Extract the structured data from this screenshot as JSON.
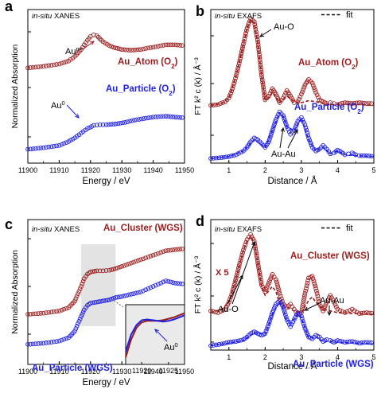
{
  "colors": {
    "red": "#9b1c1c",
    "blue": "#1f1fe0",
    "axis": "#000000",
    "shade": "#d9d9d9"
  },
  "chart_data": [
    {
      "panel_letter": "a",
      "type": "line",
      "title": "in-situ XANES",
      "xlabel": "Energy / eV",
      "ylabel": "Normalized Absorption",
      "xlim": [
        11900,
        11950
      ],
      "xticks": [
        11900,
        11910,
        11920,
        11930,
        11940,
        11950
      ],
      "annotations": [
        "Au",
        "n+",
        "Au",
        "0"
      ],
      "series": [
        {
          "name": "Au_Atom (O2)",
          "label_main": "Au_Atom (O",
          "label_sub": "2",
          "label_close": ")",
          "color": "red",
          "style": "circles",
          "x": [
            11900,
            11905,
            11910,
            11913,
            11915,
            11917,
            11918,
            11919,
            11920,
            11921,
            11922,
            11923,
            11924,
            11926,
            11928,
            11930,
            11933,
            11936,
            11940,
            11944,
            11947,
            11950
          ],
          "y": [
            0.62,
            0.63,
            0.645,
            0.665,
            0.695,
            0.74,
            0.77,
            0.8,
            0.825,
            0.835,
            0.83,
            0.81,
            0.79,
            0.765,
            0.75,
            0.74,
            0.735,
            0.74,
            0.755,
            0.77,
            0.77,
            0.765
          ]
        },
        {
          "name": "Au_Particle (O2)",
          "label_main": "Au_Particle (O",
          "label_sub": "2",
          "label_close": ")",
          "color": "blue",
          "style": "circles",
          "x": [
            11900,
            11905,
            11910,
            11913,
            11915,
            11917,
            11919,
            11921,
            11923,
            11925,
            11928,
            11931,
            11934,
            11937,
            11940,
            11944,
            11947,
            11950
          ],
          "y": [
            0.09,
            0.1,
            0.115,
            0.14,
            0.165,
            0.195,
            0.225,
            0.245,
            0.25,
            0.25,
            0.255,
            0.265,
            0.28,
            0.29,
            0.3,
            0.305,
            0.3,
            0.295
          ]
        }
      ]
    },
    {
      "panel_letter": "b",
      "type": "line",
      "title": "in-situ EXAFS",
      "legend": "fit",
      "xlabel": "Distance / Å",
      "ylabel": "FT k² c (k) / Å⁻³",
      "xlim": [
        0.5,
        5
      ],
      "xticks": [
        1,
        2,
        3,
        4,
        5
      ],
      "annotations": [
        "Au-O",
        "Au-Au"
      ],
      "series": [
        {
          "name": "Au_Atom (O2)",
          "label_main": "Au_Atom (O",
          "label_sub": "2",
          "label_close": ")",
          "color": "red",
          "style": "circles",
          "x": [
            0.5,
            0.7,
            0.9,
            1.0,
            1.1,
            1.2,
            1.3,
            1.4,
            1.5,
            1.6,
            1.7,
            1.8,
            1.9,
            2.0,
            2.1,
            2.2,
            2.3,
            2.4,
            2.5,
            2.6,
            2.7,
            2.8,
            2.9,
            3.0,
            3.1,
            3.2,
            3.3,
            3.4,
            3.5,
            3.6,
            3.7,
            3.8,
            3.9,
            4.0,
            4.2,
            4.4,
            4.6,
            4.8,
            5.0
          ],
          "y": [
            0.02,
            0.03,
            0.06,
            0.1,
            0.2,
            0.34,
            0.5,
            0.68,
            0.85,
            0.95,
            0.92,
            0.7,
            0.35,
            0.08,
            0.12,
            0.2,
            0.14,
            0.05,
            0.1,
            0.18,
            0.12,
            0.05,
            0.06,
            0.14,
            0.24,
            0.3,
            0.26,
            0.16,
            0.08,
            0.06,
            0.04,
            0.05,
            0.04,
            0.03,
            0.05,
            0.04,
            0.05,
            0.04,
            0.04
          ]
        },
        {
          "name": "fit (Au_Atom)",
          "color": "red",
          "style": "dashed",
          "x": [
            0.5,
            0.8,
            1.0,
            1.2,
            1.4,
            1.5,
            1.6,
            1.7,
            1.8,
            1.9,
            2.0,
            2.1,
            2.2,
            2.3,
            2.4,
            2.6,
            2.8,
            3.0,
            3.2,
            3.4,
            3.6,
            3.8,
            4.0,
            4.5,
            5.0
          ],
          "y": [
            0.02,
            0.04,
            0.1,
            0.34,
            0.68,
            0.85,
            0.94,
            0.9,
            0.68,
            0.34,
            0.08,
            0.1,
            0.16,
            0.1,
            0.05,
            0.12,
            0.06,
            0.05,
            0.07,
            0.06,
            0.04,
            0.03,
            0.03,
            0.03,
            0.02
          ]
        },
        {
          "name": "Au_Particle (O2)",
          "label_main": "Au_Particle (O",
          "label_sub": "2",
          "label_close": ")",
          "color": "blue",
          "style": "circles",
          "x": [
            0.5,
            0.8,
            1.0,
            1.2,
            1.4,
            1.5,
            1.6,
            1.7,
            1.8,
            1.9,
            2.0,
            2.1,
            2.2,
            2.3,
            2.4,
            2.5,
            2.6,
            2.7,
            2.8,
            2.9,
            3.0,
            3.1,
            3.2,
            3.3,
            3.4,
            3.5,
            3.6,
            3.7,
            3.8,
            3.9,
            4.0,
            4.1,
            4.2,
            4.3,
            4.4,
            4.5,
            4.6,
            4.8,
            5.0
          ],
          "y": [
            0.0,
            0.01,
            0.02,
            0.04,
            0.08,
            0.12,
            0.18,
            0.22,
            0.2,
            0.16,
            0.12,
            0.18,
            0.3,
            0.42,
            0.5,
            0.46,
            0.34,
            0.26,
            0.3,
            0.4,
            0.44,
            0.36,
            0.22,
            0.12,
            0.08,
            0.1,
            0.14,
            0.1,
            0.05,
            0.06,
            0.09,
            0.07,
            0.04,
            0.05,
            0.06,
            0.04,
            0.03,
            0.03,
            0.02
          ]
        },
        {
          "name": "fit (Au_Particle)",
          "color": "blue",
          "style": "dashed",
          "x": [
            0.5,
            1.0,
            1.4,
            1.7,
            2.0,
            2.2,
            2.4,
            2.5,
            2.6,
            2.8,
            3.0,
            3.2,
            3.4,
            3.6,
            3.8,
            4.0,
            4.2,
            4.5,
            5.0
          ],
          "y": [
            0.0,
            0.02,
            0.08,
            0.2,
            0.12,
            0.3,
            0.49,
            0.45,
            0.34,
            0.3,
            0.43,
            0.2,
            0.08,
            0.12,
            0.05,
            0.08,
            0.04,
            0.03,
            0.02
          ]
        }
      ]
    },
    {
      "panel_letter": "c",
      "type": "line",
      "title": "in-situ XANES",
      "xlabel": "Energy / eV",
      "ylabel": "Normalized Absorption",
      "xlim": [
        11900,
        11950
      ],
      "xticks": [
        11900,
        11910,
        11920,
        11930,
        11940,
        11950
      ],
      "highlight_range": [
        11917,
        11928
      ],
      "series": [
        {
          "name": "Au_Cluster (WGS)",
          "color": "red",
          "style": "circles",
          "x": [
            11900,
            11905,
            11910,
            11913,
            11915,
            11917,
            11918,
            11919,
            11920,
            11922,
            11924,
            11926,
            11928,
            11930,
            11933,
            11936,
            11940,
            11944,
            11947,
            11950
          ],
          "y": [
            0.3,
            0.31,
            0.33,
            0.36,
            0.42,
            0.55,
            0.62,
            0.66,
            0.68,
            0.69,
            0.69,
            0.695,
            0.71,
            0.73,
            0.76,
            0.79,
            0.83,
            0.87,
            0.88,
            0.89
          ]
        },
        {
          "name": "Au_Particle (WGS)",
          "color": "blue",
          "style": "circles",
          "x": [
            11900,
            11905,
            11910,
            11913,
            11915,
            11917,
            11918,
            11919,
            11920,
            11922,
            11924,
            11926,
            11928,
            11930,
            11933,
            11936,
            11940,
            11944,
            11947,
            11950
          ],
          "y": [
            0.03,
            0.04,
            0.06,
            0.09,
            0.15,
            0.28,
            0.34,
            0.38,
            0.4,
            0.41,
            0.42,
            0.43,
            0.45,
            0.46,
            0.48,
            0.5,
            0.55,
            0.6,
            0.58,
            0.57
          ]
        }
      ],
      "inset": {
        "type": "line",
        "xlim": [
          11917,
          11928
        ],
        "xticks": [
          11920,
          11925
        ],
        "annotation": "Au",
        "annotation_sup": "0",
        "series": [
          {
            "name": "Au_Cluster (WGS)",
            "color": "red",
            "x": [
              11917,
              11918,
              11919,
              11920,
              11921,
              11922,
              11923,
              11924,
              11925,
              11926,
              11927,
              11928
            ],
            "y": [
              0.2,
              0.45,
              0.62,
              0.7,
              0.72,
              0.72,
              0.72,
              0.73,
              0.75,
              0.77,
              0.8,
              0.83
            ]
          },
          {
            "name": "Au_Particle (WGS)",
            "color": "blue",
            "x": [
              11917,
              11918,
              11919,
              11920,
              11921,
              11922,
              11923,
              11924,
              11925,
              11926,
              11927,
              11928
            ],
            "y": [
              0.28,
              0.52,
              0.66,
              0.73,
              0.74,
              0.73,
              0.72,
              0.71,
              0.72,
              0.74,
              0.77,
              0.8
            ]
          }
        ]
      }
    },
    {
      "panel_letter": "d",
      "type": "line",
      "title": "in-situ EXAFS",
      "legend": "fit",
      "xlabel": "Distance / Å",
      "ylabel": "FT k² c (k) / Å⁻³",
      "xlim": [
        0.5,
        5
      ],
      "xticks": [
        1,
        2,
        3,
        4,
        5
      ],
      "annotations": [
        "X 5",
        "Au-O",
        "Au-Au"
      ],
      "series": [
        {
          "name": "Au_Cluster (WGS)",
          "color": "red",
          "style": "circles",
          "x": [
            0.5,
            0.7,
            0.9,
            1.0,
            1.1,
            1.2,
            1.3,
            1.4,
            1.5,
            1.6,
            1.7,
            1.8,
            1.9,
            2.0,
            2.1,
            2.2,
            2.3,
            2.4,
            2.5,
            2.6,
            2.7,
            2.8,
            2.9,
            3.0,
            3.1,
            3.2,
            3.3,
            3.4,
            3.5,
            3.6,
            3.7,
            3.8,
            3.9,
            4.0,
            4.2,
            4.4,
            4.6,
            4.8,
            5.0
          ],
          "y": [
            0.4,
            0.38,
            0.42,
            0.5,
            0.62,
            0.78,
            0.95,
            1.1,
            1.22,
            1.28,
            1.2,
            0.95,
            0.7,
            0.62,
            0.72,
            0.82,
            0.76,
            0.6,
            0.48,
            0.44,
            0.48,
            0.42,
            0.36,
            0.38,
            0.6,
            0.78,
            0.8,
            0.66,
            0.48,
            0.4,
            0.5,
            0.58,
            0.5,
            0.42,
            0.38,
            0.42,
            0.37,
            0.38,
            0.37
          ]
        },
        {
          "name": "fit (Au_Cluster)",
          "color": "red",
          "style": "dashed",
          "x": [
            0.5,
            0.8,
            1.0,
            1.2,
            1.4,
            1.5,
            1.6,
            1.7,
            1.8,
            1.9,
            2.0,
            2.2,
            2.3,
            2.4,
            2.6,
            2.8,
            3.0,
            3.2,
            3.3,
            3.4,
            3.6,
            3.8,
            4.0,
            4.5,
            5.0
          ],
          "y": [
            0.38,
            0.42,
            0.5,
            0.78,
            1.1,
            1.2,
            1.26,
            1.18,
            0.94,
            0.68,
            0.58,
            0.68,
            0.62,
            0.48,
            0.44,
            0.4,
            0.38,
            0.52,
            0.56,
            0.5,
            0.42,
            0.4,
            0.38,
            0.37,
            0.36
          ]
        },
        {
          "name": "Au_Particle (WGS)",
          "color": "blue",
          "style": "circles",
          "x": [
            0.5,
            0.8,
            1.0,
            1.2,
            1.4,
            1.5,
            1.6,
            1.7,
            1.8,
            1.9,
            2.0,
            2.1,
            2.2,
            2.3,
            2.4,
            2.5,
            2.6,
            2.7,
            2.8,
            2.9,
            3.0,
            3.1,
            3.2,
            3.3,
            3.4,
            3.5,
            3.6,
            3.7,
            3.8,
            3.9,
            4.0,
            4.2,
            4.4,
            4.6,
            4.8,
            5.0
          ],
          "y": [
            0.0,
            0.02,
            0.04,
            0.05,
            0.07,
            0.1,
            0.14,
            0.16,
            0.14,
            0.12,
            0.14,
            0.25,
            0.38,
            0.48,
            0.52,
            0.44,
            0.3,
            0.22,
            0.3,
            0.38,
            0.34,
            0.2,
            0.1,
            0.08,
            0.12,
            0.1,
            0.05,
            0.07,
            0.06,
            0.04,
            0.06,
            0.04,
            0.05,
            0.03,
            0.04,
            0.03
          ]
        },
        {
          "name": "fit (Au_Particle)",
          "color": "blue",
          "style": "dashed",
          "x": [
            0.5,
            1.0,
            1.4,
            1.7,
            2.0,
            2.2,
            2.4,
            2.5,
            2.6,
            2.8,
            2.9,
            3.0,
            3.2,
            3.4,
            3.6,
            3.8,
            4.0,
            4.5,
            5.0
          ],
          "y": [
            0.0,
            0.03,
            0.06,
            0.15,
            0.13,
            0.36,
            0.5,
            0.42,
            0.28,
            0.3,
            0.36,
            0.32,
            0.09,
            0.1,
            0.05,
            0.05,
            0.04,
            0.03,
            0.02
          ]
        }
      ]
    }
  ]
}
